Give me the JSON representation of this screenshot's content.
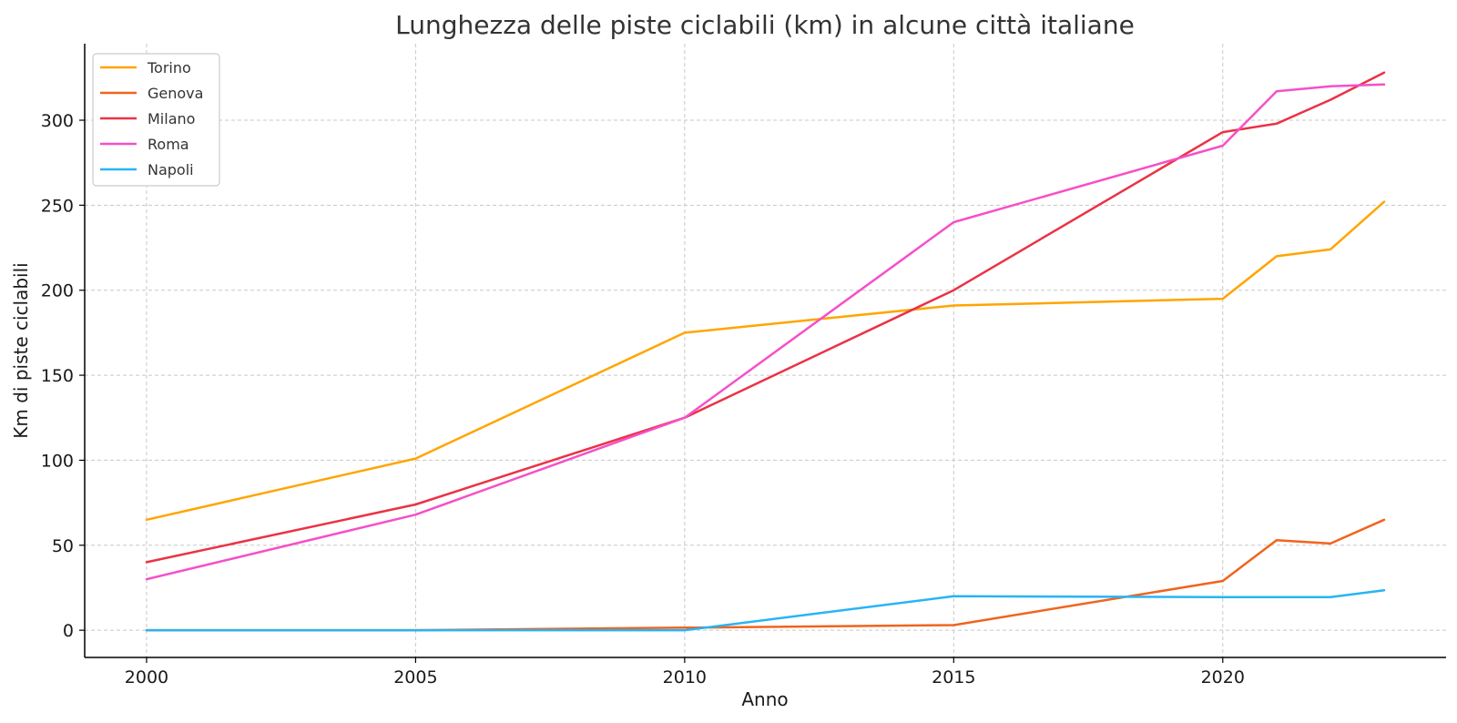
{
  "chart_data": {
    "type": "line",
    "title": "Lunghezza delle piste ciclabili (km) in alcune città italiane",
    "xlabel": "Anno",
    "ylabel": "Km di piste ciclabili",
    "xlim": [
      1998.85,
      2024.15
    ],
    "ylim": [
      -16,
      345
    ],
    "xticks": [
      2000,
      2005,
      2010,
      2015,
      2020
    ],
    "yticks": [
      0,
      50,
      100,
      150,
      200,
      250,
      300
    ],
    "grid": true,
    "legend_position": "top-left",
    "x": [
      2000,
      2005,
      2010,
      2015,
      2020,
      2021,
      2022,
      2023
    ],
    "series": [
      {
        "name": "Torino",
        "color": "#FFA500",
        "values": [
          65,
          101,
          175,
          191,
          195,
          220,
          224,
          252
        ]
      },
      {
        "name": "Genova",
        "color": "#F0641E",
        "values": [
          0,
          0,
          1.5,
          3,
          29,
          53,
          51,
          65
        ]
      },
      {
        "name": "Milano",
        "color": "#EB3246",
        "values": [
          40,
          74,
          125,
          200,
          293,
          298,
          312,
          328
        ]
      },
      {
        "name": "Roma",
        "color": "#F550C8",
        "values": [
          30,
          68,
          125,
          240,
          285,
          317,
          320,
          321
        ]
      },
      {
        "name": "Napoli",
        "color": "#28B4F5",
        "values": [
          0,
          0,
          0,
          20,
          19.5,
          19.5,
          19.5,
          23.5
        ]
      }
    ]
  }
}
